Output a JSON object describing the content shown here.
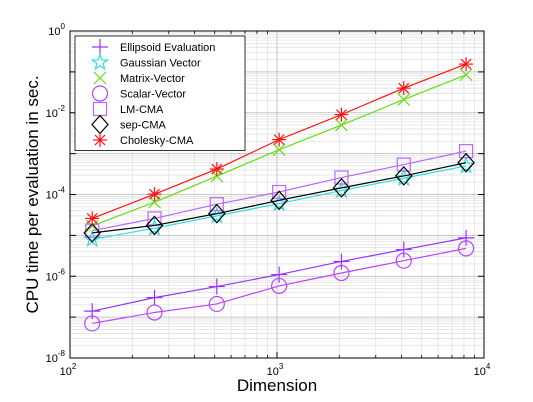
{
  "chart_data": {
    "type": "line",
    "title": "",
    "xlabel": "Dimension",
    "ylabel": "CPU time per evaluation in sec.",
    "xscale": "log",
    "yscale": "log",
    "xlim": [
      100,
      10000
    ],
    "ylim": [
      1e-08,
      1
    ],
    "grid": true,
    "legend_position": "top-left",
    "x_ticks": [
      {
        "base": "10",
        "exp": "2"
      },
      {
        "base": "10",
        "exp": "3"
      },
      {
        "base": "10",
        "exp": "4"
      }
    ],
    "y_ticks": [
      {
        "base": "10",
        "exp": "-8"
      },
      {
        "base": "10",
        "exp": "-6"
      },
      {
        "base": "10",
        "exp": "-4"
      },
      {
        "base": "10",
        "exp": "-2"
      },
      {
        "base": "10",
        "exp": "0"
      }
    ],
    "x": [
      128,
      256,
      512,
      1024,
      2048,
      4096,
      8192
    ],
    "series": [
      {
        "name": "Ellipsoid Evaluation",
        "marker": "plus",
        "color": "#9933ff",
        "values": [
          1.4e-07,
          3e-07,
          5.6e-07,
          1.1e-06,
          2.3e-06,
          4.5e-06,
          8.7e-06
        ]
      },
      {
        "name": "Gaussian Vector",
        "marker": "pentagram",
        "color": "#33dddd",
        "values": [
          8e-06,
          1.5e-05,
          3e-05,
          6e-05,
          0.000125,
          0.00025,
          0.0005
        ]
      },
      {
        "name": "Matrix-Vector",
        "marker": "x",
        "color": "#66dd11",
        "values": [
          1.7e-05,
          6.5e-05,
          0.00028,
          0.00125,
          0.005,
          0.021,
          0.085
        ]
      },
      {
        "name": "Scalar-Vector",
        "marker": "circle",
        "color": "#bb44ff",
        "values": [
          7e-08,
          1.3e-07,
          2.1e-07,
          5.8e-07,
          1.2e-06,
          2.4e-06,
          4.8e-06
        ]
      },
      {
        "name": "LM-CMA",
        "marker": "square",
        "color": "#bb66ff",
        "values": [
          1.3e-05,
          2.6e-05,
          5.8e-05,
          0.000115,
          0.00026,
          0.00054,
          0.00115
        ]
      },
      {
        "name": "sep-CMA",
        "marker": "diamond",
        "color": "#000000",
        "values": [
          1.15e-05,
          1.75e-05,
          3.4e-05,
          7.2e-05,
          0.000145,
          0.000285,
          0.0006
        ]
      },
      {
        "name": "Cholesky-CMA",
        "marker": "asterisk",
        "color": "#ff1111",
        "values": [
          2.6e-05,
          0.000102,
          0.00042,
          0.0022,
          0.009,
          0.04,
          0.155
        ]
      }
    ]
  }
}
